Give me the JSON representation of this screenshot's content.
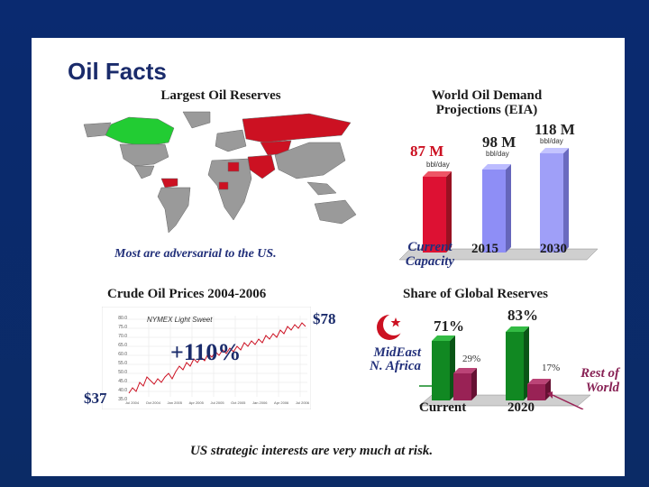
{
  "title": "Oil Facts",
  "reserves": {
    "heading": "Largest Oil Reserves",
    "caption": "Most are adversarial to the US.",
    "colors": {
      "highlight_green": "#22cc33",
      "highlight_red": "#cc1122",
      "land": "#9a9a9a"
    }
  },
  "demand": {
    "heading_line1": "World Oil Demand",
    "heading_line2": "Projections (EIA)",
    "unit": "bbl/day",
    "bars": [
      {
        "label_line1": "Current",
        "label_line2": "Capacity",
        "value": "87 M",
        "color": "#dd1133"
      },
      {
        "label_line1": "2015",
        "label_line2": "",
        "value": "98 M",
        "color": "#8e8ef6"
      },
      {
        "label_line1": "2030",
        "label_line2": "",
        "value": "118 M",
        "color": "#9f9ff8"
      }
    ]
  },
  "prices": {
    "heading": "Crude Oil Prices 2004-2006",
    "inner_title": "NYMEX Light Sweet",
    "start": "$37",
    "end": "$78",
    "change": "+110%",
    "yaxis_ticks": [
      "80.0",
      "75.0",
      "70.0",
      "65.0",
      "60.0",
      "55.0",
      "50.0",
      "45.0",
      "40.0",
      "35.0"
    ],
    "xaxis_ticks": [
      "Jul 2004",
      "Oct 2004",
      "Jan 2005",
      "Apr 2005",
      "Jul 2005",
      "Oct 2005",
      "Jan 2006",
      "Apr 2006",
      "Jul 2006"
    ]
  },
  "share": {
    "heading": "Share of Global Reserves",
    "group1": "Current",
    "group2": "2020",
    "mideast_current": "71%",
    "rest_current": "29%",
    "mideast_2020": "83%",
    "rest_2020": "17%",
    "mideast_label_line1": "MidEast",
    "mideast_label_line2": "N. Africa",
    "rest_label_line1": "Rest of",
    "rest_label_line2": "World",
    "colors": {
      "mideast": "#118822",
      "rest": "#992255"
    }
  },
  "footer": "US strategic interests are very much at risk."
}
